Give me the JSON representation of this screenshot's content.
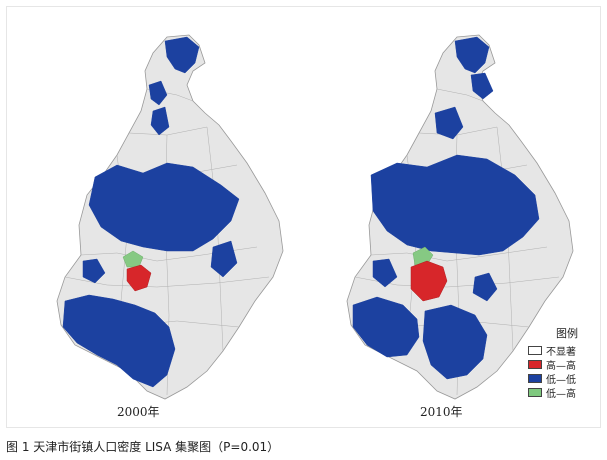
{
  "maps": [
    {
      "year_label": "2000年"
    },
    {
      "year_label": "2010年"
    }
  ],
  "legend": {
    "title": "图例",
    "items": [
      {
        "label": "不显著",
        "color": "#ffffff"
      },
      {
        "label": "高—高",
        "color": "#d7262a"
      },
      {
        "label": "低—低",
        "color": "#1c41a0"
      },
      {
        "label": "低—高",
        "color": "#7fc97f"
      }
    ]
  },
  "caption": "图 1  天津市街镇人口密度 LISA 集聚图（P=0.01）",
  "colors": {
    "not_significant": "#e6e6e6",
    "high_high": "#d7262a",
    "low_low": "#1c41a0",
    "low_high": "#86c983",
    "boundary": "#999999"
  }
}
